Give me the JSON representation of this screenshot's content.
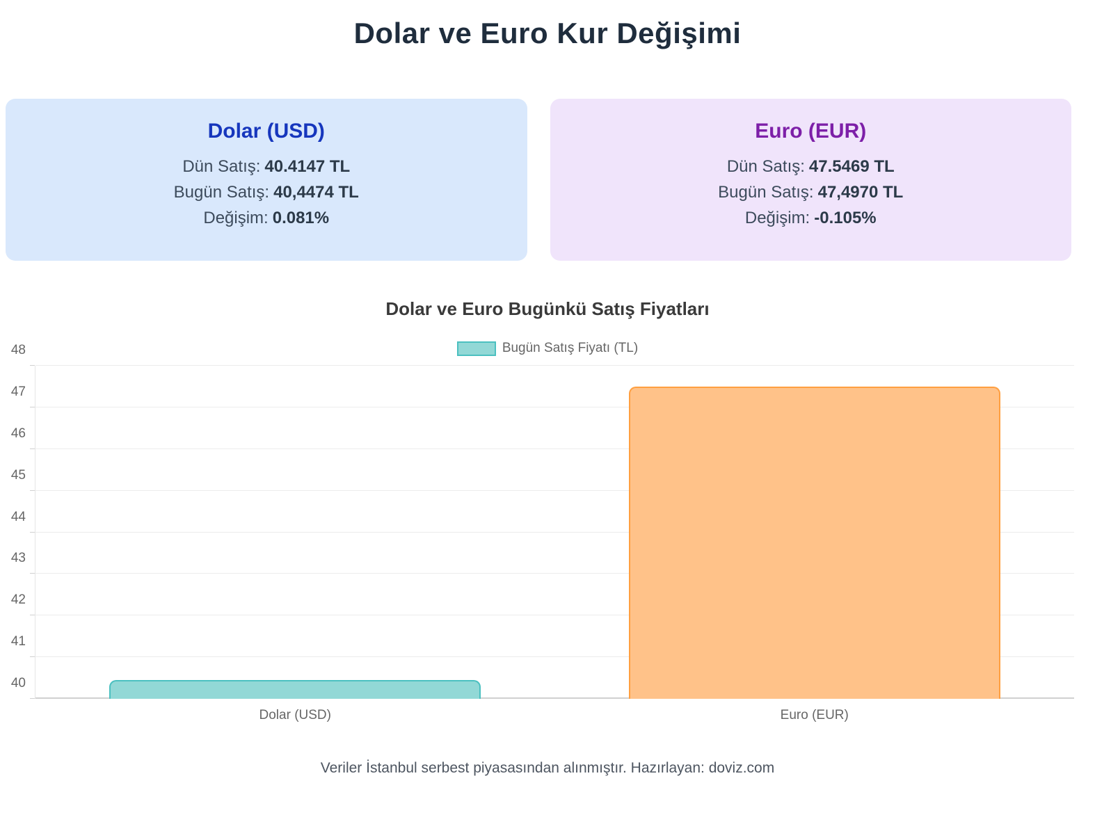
{
  "page": {
    "title": "Dolar ve Euro Kur Değişimi",
    "footer": "Veriler İstanbul serbest piyasasından alınmıştır. Hazırlayan: doviz.com"
  },
  "cards": [
    {
      "title": "Dolar (USD)",
      "rows": [
        {
          "label": "Dün Satış:",
          "value": "40.4147 TL"
        },
        {
          "label": "Bugün Satış:",
          "value": "40,4474 TL"
        }
      ],
      "change_label": "Değişim:",
      "change_value": "0.081%",
      "change_direction": "positive",
      "accent_color": "#1636bd",
      "bg_color": "#d9e8fc",
      "change_color": "#13a049"
    },
    {
      "title": "Euro (EUR)",
      "rows": [
        {
          "label": "Dün Satış:",
          "value": "47.5469 TL"
        },
        {
          "label": "Bugün Satış:",
          "value": "47,4970 TL"
        }
      ],
      "change_label": "Değişim:",
      "change_value": "-0.105%",
      "change_direction": "negative",
      "accent_color": "#7d1fa8",
      "bg_color": "#f0e4fb",
      "change_color": "#e31212"
    }
  ],
  "chart_data": {
    "type": "bar",
    "title": "Dolar ve Euro Bugünkü Satış Fiyatları",
    "legend": [
      {
        "label": "Bugün Satış Fiyatı (TL)",
        "fill": "#92d8d6",
        "border": "#4bc0c0"
      }
    ],
    "legend_position": "top",
    "categories": [
      "Dolar (USD)",
      "Euro (EUR)"
    ],
    "values": [
      40.4474,
      47.497
    ],
    "bar_colors": [
      {
        "fill": "#92d8d6",
        "border": "#4bc0c0"
      },
      {
        "fill": "#ffc289",
        "border": "#ff9f40"
      }
    ],
    "xlabel": "",
    "ylabel": "",
    "ylim": [
      40,
      48
    ],
    "ytick_step": 1,
    "grid": true
  }
}
